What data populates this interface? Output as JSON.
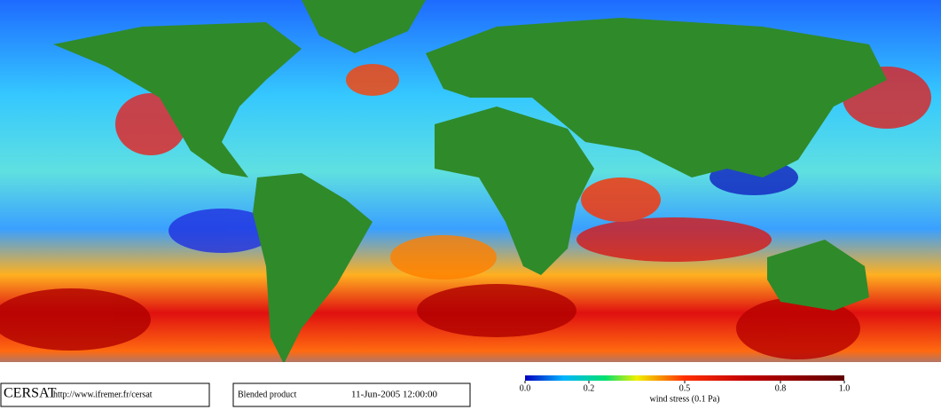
{
  "footer": {
    "logo": "CERSAT",
    "url": "http://www.ifremer.fr/cersat",
    "product": "Blended product",
    "datetime": "11-Jun-2005 12:00:00"
  },
  "colorbar": {
    "label": "wind stress (0.1 Pa)",
    "range": [
      0,
      1
    ],
    "ticks": [
      {
        "value": 0,
        "label": "0.0"
      },
      {
        "value": 0.2,
        "label": "0.2"
      },
      {
        "value": 0.5,
        "label": "0.5"
      },
      {
        "value": 0.8,
        "label": "0.8"
      },
      {
        "value": 1,
        "label": "1.0"
      }
    ]
  }
}
